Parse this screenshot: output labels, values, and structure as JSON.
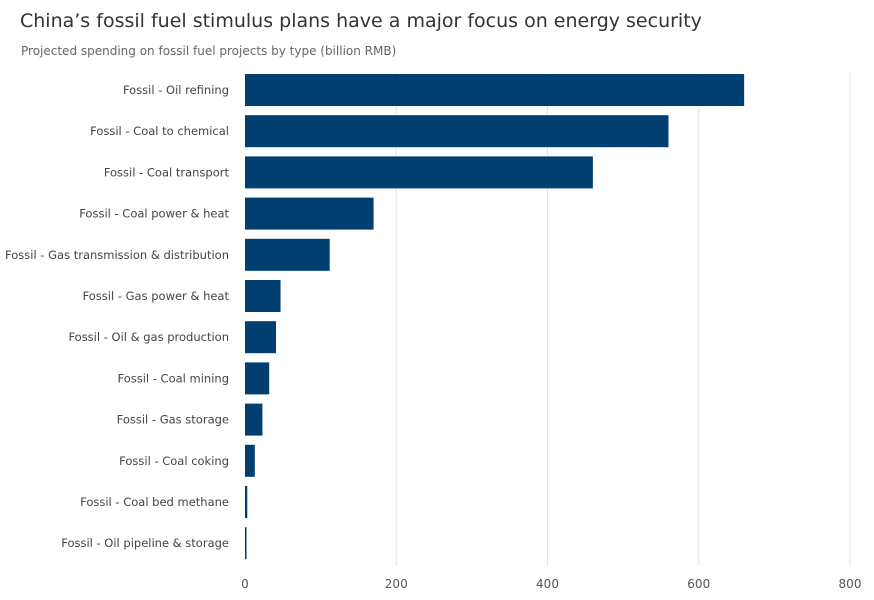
{
  "chart_data": {
    "type": "bar",
    "orientation": "horizontal",
    "title": "China’s fossil fuel stimulus plans have a major focus on energy security",
    "subtitle": "Projected spending on fossil fuel projects by type (billion RMB)",
    "xlabel": "",
    "ylabel": "",
    "xlim": [
      0,
      800
    ],
    "xticks": [
      "0",
      "200",
      "400",
      "600",
      "800"
    ],
    "grid": true,
    "bar_color": "#003f6f",
    "categories": [
      "Fossil - Oil refining",
      "Fossil - Coal to chemical",
      "Fossil - Coal transport",
      "Fossil - Coal power & heat",
      "Fossil - Gas transmission & distribution",
      "Fossil - Gas power & heat",
      "Fossil - Oil & gas production",
      "Fossil - Coal mining",
      "Fossil - Gas storage",
      "Fossil - Coal coking",
      "Fossil - Coal bed methane",
      "Fossil - Oil pipeline & storage"
    ],
    "values": [
      660,
      560,
      460,
      170,
      112,
      47,
      41,
      32,
      23,
      13,
      3,
      2
    ]
  }
}
